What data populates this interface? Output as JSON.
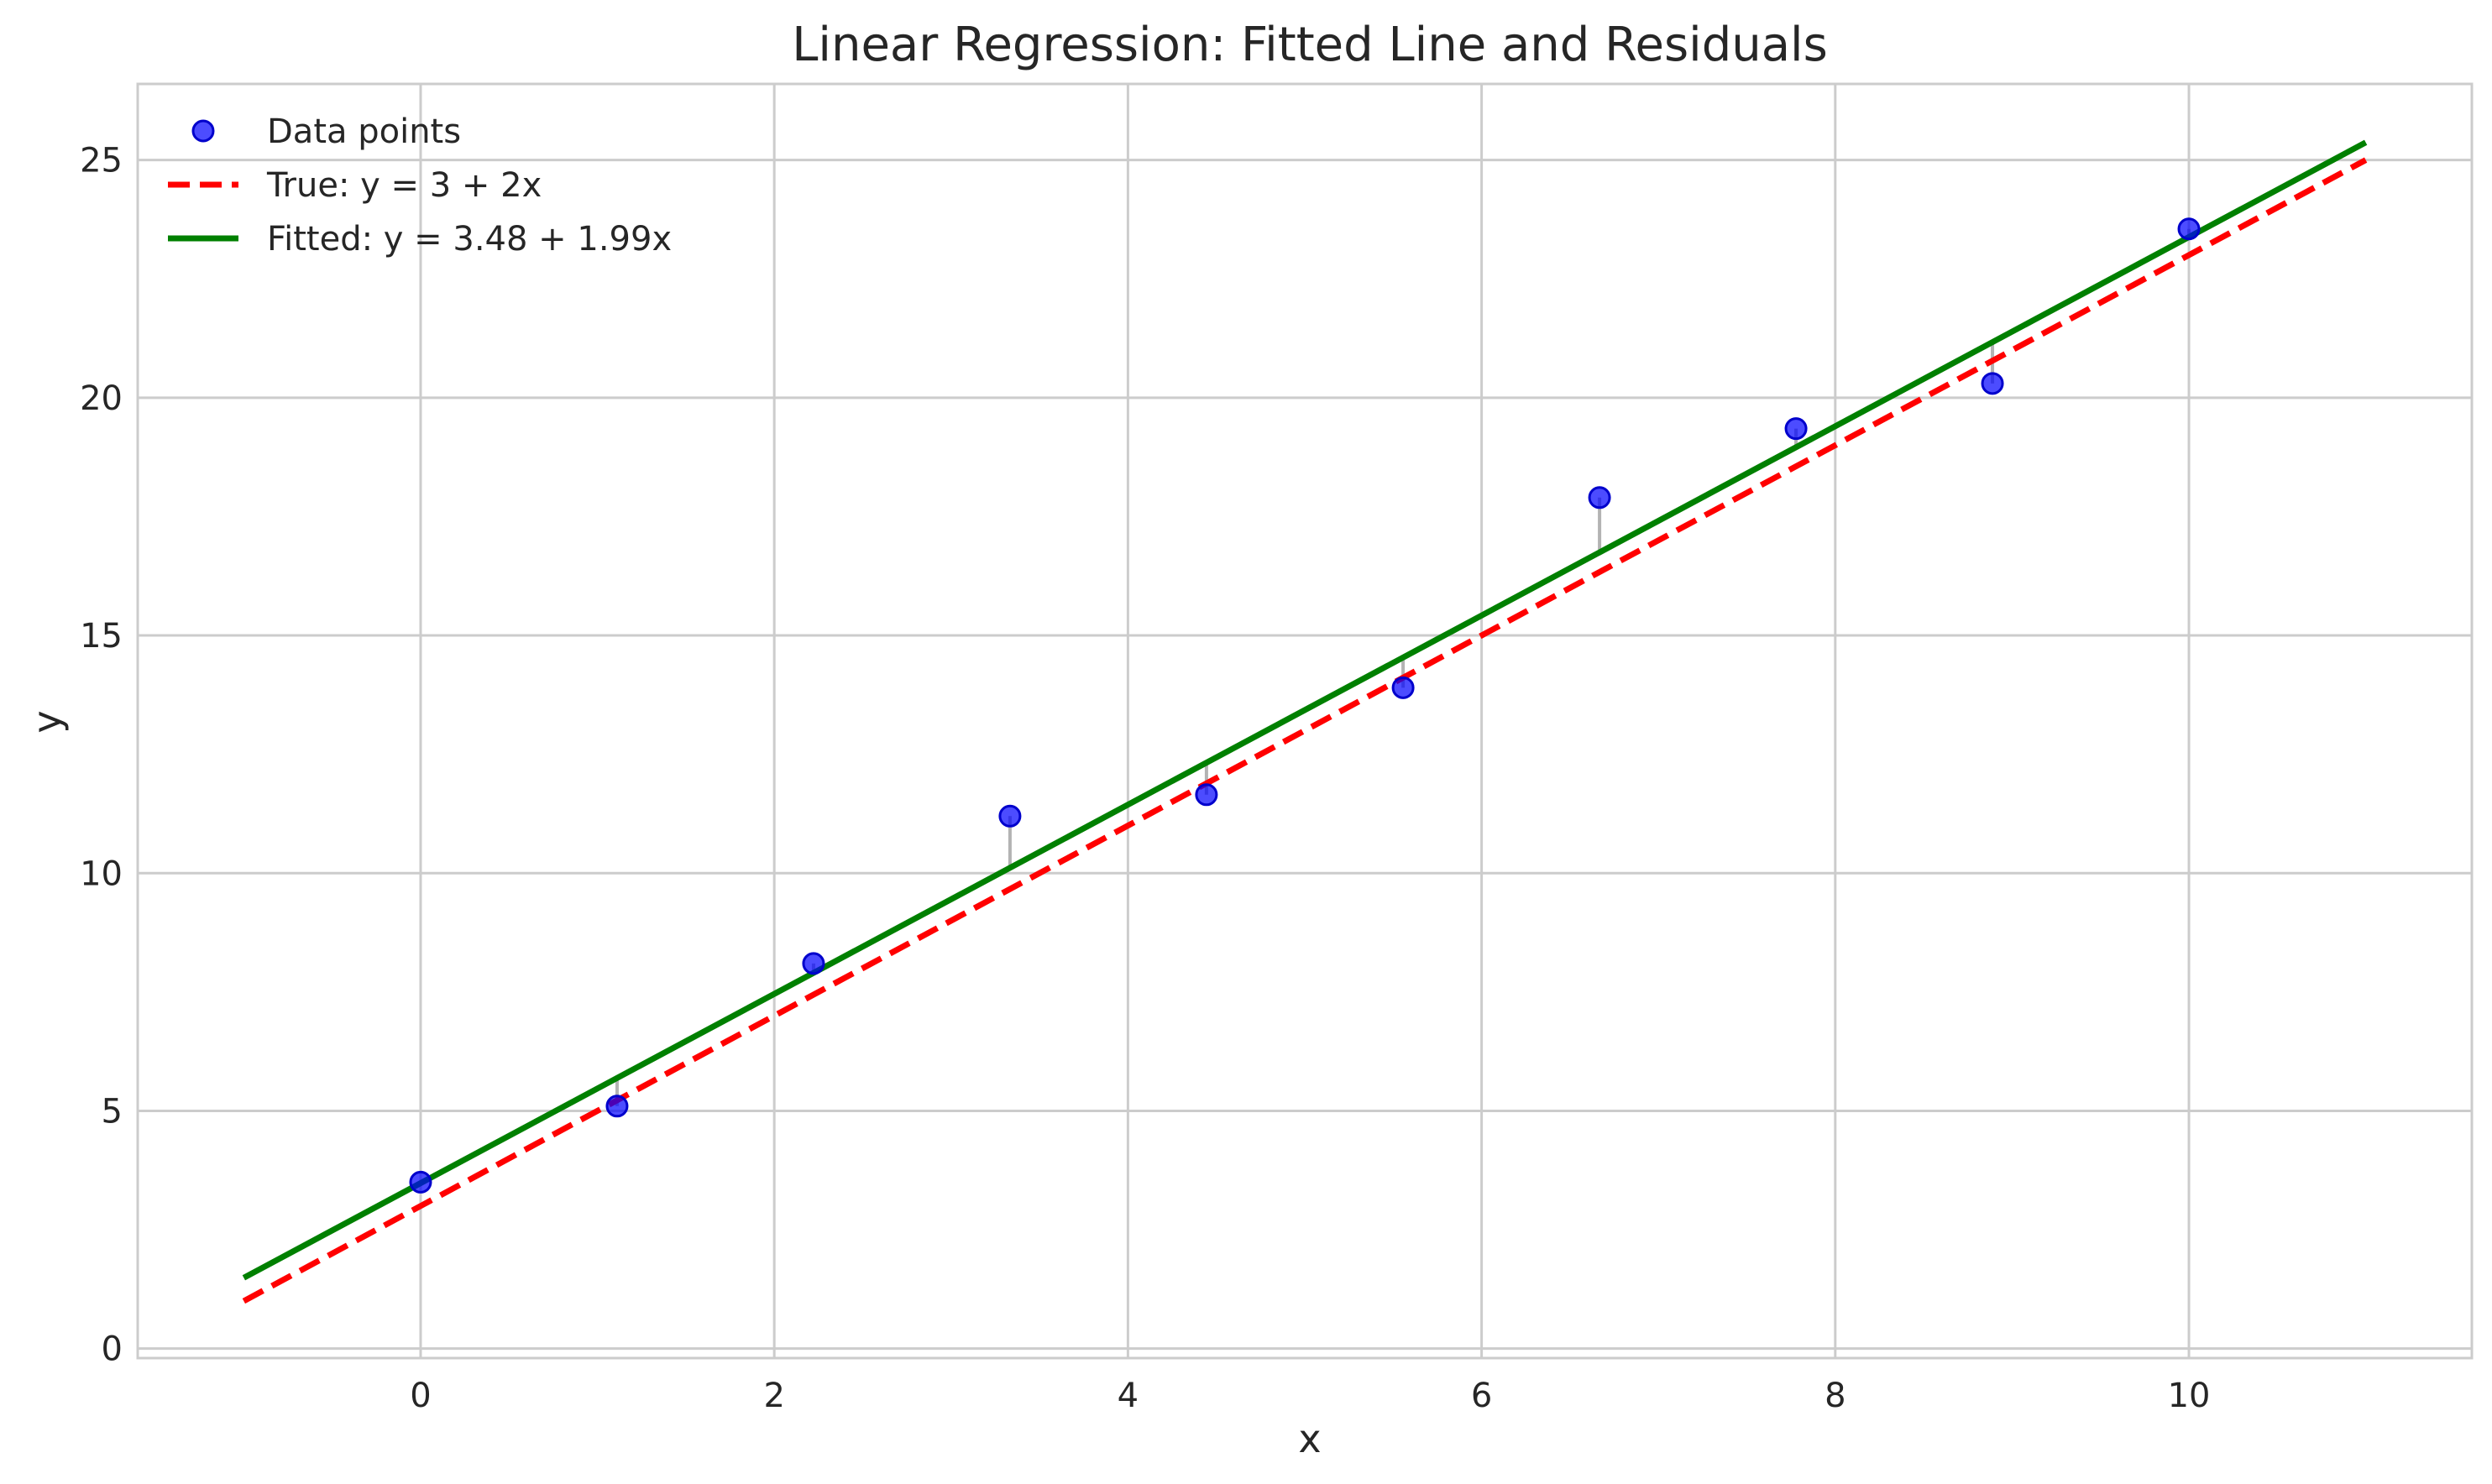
{
  "chart_data": {
    "type": "scatter",
    "title": "Linear Regression: Fitted Line and Residuals",
    "xlabel": "x",
    "ylabel": "y",
    "xlim": [
      -1.6,
      11.6
    ],
    "ylim": [
      -0.2,
      26.6
    ],
    "grid": true,
    "legend_position": "top-left",
    "x_ticks": [
      0,
      2,
      4,
      6,
      8,
      10
    ],
    "y_ticks": [
      0,
      5,
      10,
      15,
      20,
      25
    ],
    "points": {
      "name": "Data points",
      "color": "#0000ff",
      "x": [
        0,
        1.111,
        2.222,
        3.333,
        4.444,
        5.556,
        6.667,
        7.778,
        8.889,
        10
      ],
      "y": [
        3.5,
        5.1,
        8.1,
        11.2,
        11.65,
        13.9,
        17.9,
        19.35,
        20.3,
        23.55
      ]
    },
    "lines": [
      {
        "name": "True: y = 3 + 2x",
        "intercept": 3,
        "slope": 2,
        "x_range": [
          -1,
          11
        ],
        "color": "#ff0000",
        "style": "dashed"
      },
      {
        "name": "Fitted: y = 3.48 + 1.99x",
        "intercept": 3.48,
        "slope": 1.99,
        "x_range": [
          -1,
          11
        ],
        "color": "#008000",
        "style": "solid"
      }
    ],
    "residual_color": "#808080"
  }
}
